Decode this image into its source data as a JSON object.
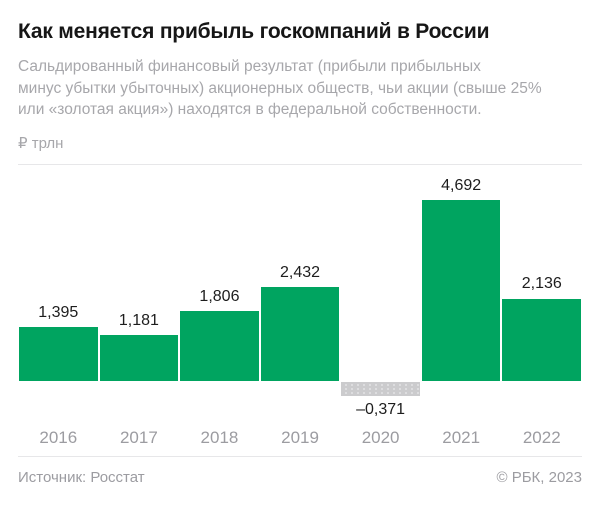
{
  "header": {
    "title": "Как меняется прибыль госкомпаний в России",
    "subtitle": "Сальдированный финансовый результат (прибыли прибыльных\nминус убытки убыточных) акционерных обществ, чьи акции (свыше 25%\nили «золотая акция») находятся в федеральной собственности.",
    "unit_label": "₽ трлн"
  },
  "chart_data": {
    "type": "bar",
    "title": "Как меняется прибыль госкомпаний в России",
    "ylabel": "₽ трлн",
    "xlabel": "",
    "categories": [
      "2016",
      "2017",
      "2018",
      "2019",
      "2020",
      "2021",
      "2022"
    ],
    "values": [
      1.395,
      1.181,
      1.806,
      2.432,
      -0.371,
      4.692,
      2.136
    ],
    "value_labels": [
      "1,395",
      "1,181",
      "1,806",
      "2,432",
      "–0,371",
      "4,692",
      "2,136"
    ],
    "ylim": [
      -0.5,
      5.0
    ],
    "baseline": 0,
    "grid": false,
    "legend": false,
    "colors": {
      "positive_bar": "#00a460",
      "negative_bar_fill": "#cbcbcd",
      "negative_bar_dots": "#e3e3e5",
      "value_label_text": "#1d1d1d",
      "axis_label_text": "#9c9ca1"
    }
  },
  "footer": {
    "source": "Источник: Росстат",
    "credit": "© РБК, 2023"
  }
}
